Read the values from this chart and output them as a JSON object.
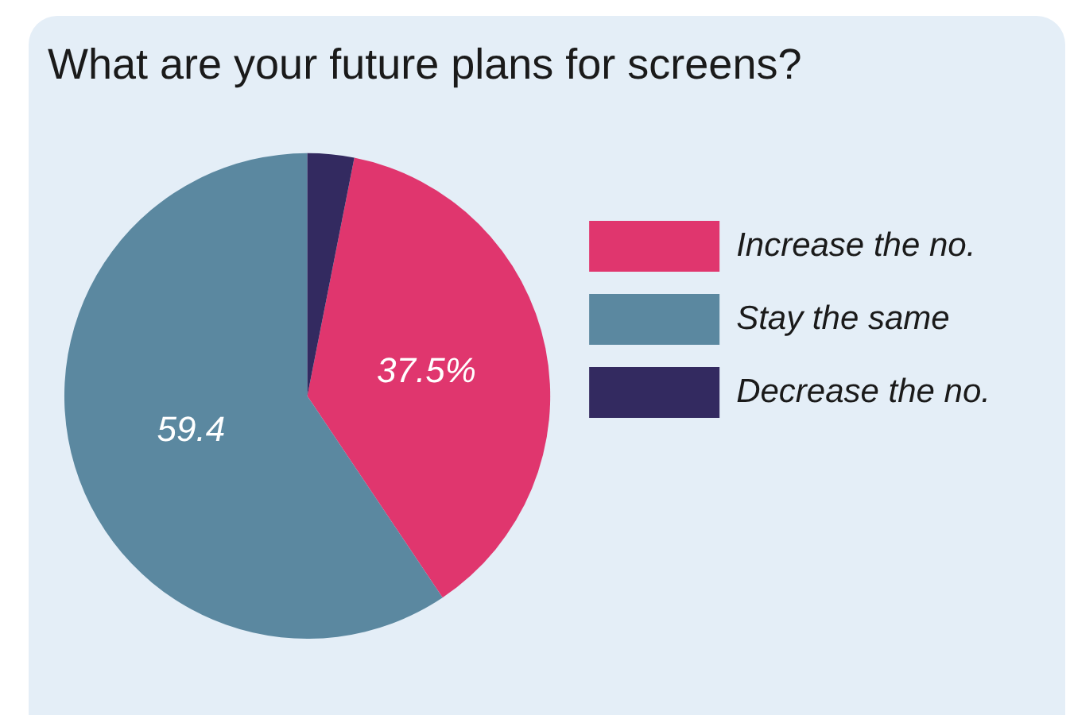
{
  "chart_data": {
    "type": "pie",
    "title": "What are your future plans for screens?",
    "categories": [
      "Increase the no.",
      "Stay the same",
      "Decrease the no."
    ],
    "values": [
      37.5,
      59.4,
      3.1
    ],
    "value_labels": [
      "37.5%",
      "59.4",
      null
    ],
    "colors": [
      "#e0366e",
      "#5b88a0",
      "#332a60"
    ],
    "legend": "right"
  }
}
